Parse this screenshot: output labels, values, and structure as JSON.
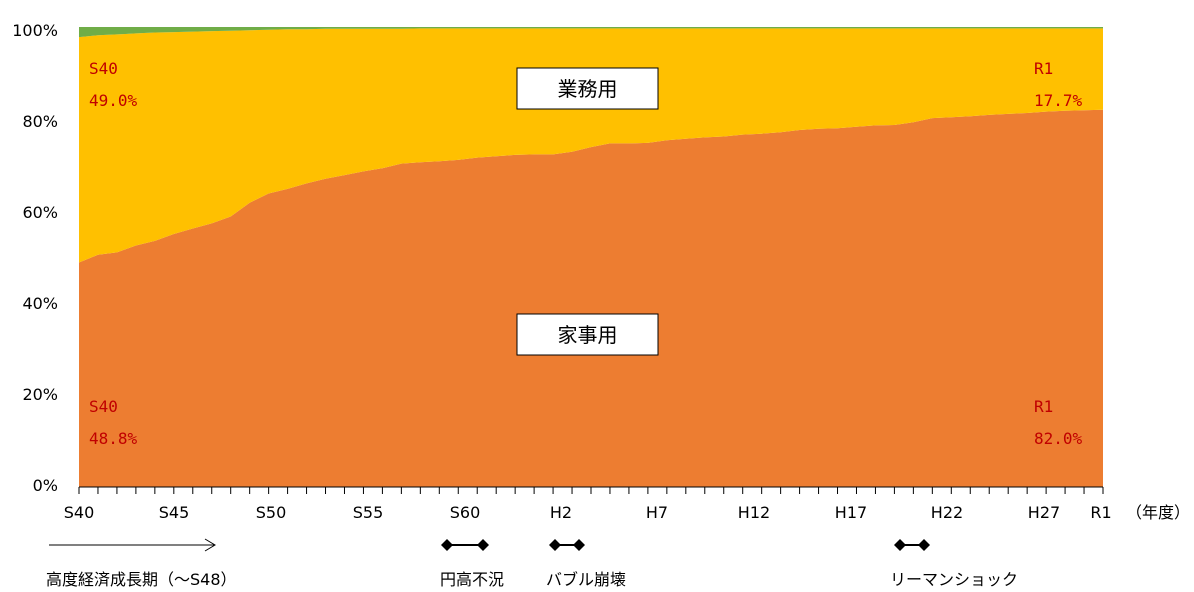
{
  "chart_data": {
    "type": "area",
    "stacked": true,
    "normalized": true,
    "x": [
      "S40",
      "S41",
      "S42",
      "S43",
      "S44",
      "S45",
      "S46",
      "S47",
      "S48",
      "S49",
      "S50",
      "S51",
      "S52",
      "S53",
      "S54",
      "S55",
      "S56",
      "S57",
      "S58",
      "S59",
      "S60",
      "S61",
      "S62",
      "S63",
      "H1",
      "H2",
      "H3",
      "H4",
      "H5",
      "H6",
      "H7",
      "H8",
      "H9",
      "H10",
      "H11",
      "H12",
      "H13",
      "H14",
      "H15",
      "H16",
      "H17",
      "H18",
      "H19",
      "H20",
      "H21",
      "H22",
      "H23",
      "H24",
      "H25",
      "H26",
      "H27",
      "H28",
      "H29",
      "H30",
      "R1"
    ],
    "x_tick_labels": [
      "S40",
      "S45",
      "S50",
      "S55",
      "S60",
      "H2",
      "H7",
      "H12",
      "H17",
      "H22",
      "H27",
      "R1"
    ],
    "x_unit_label": "（年度）",
    "y_tick_labels": [
      "0%",
      "20%",
      "40%",
      "60%",
      "80%",
      "100%"
    ],
    "ylim": [
      0,
      100
    ],
    "series": [
      {
        "color": "#ED7D31",
        "values": [
          48.8,
          50.5,
          51.0,
          52.5,
          53.5,
          55.0,
          56.2,
          57.3,
          58.8,
          61.8,
          63.8,
          64.8,
          66.0,
          67.0,
          67.8,
          68.6,
          69.3,
          70.3,
          70.6,
          70.8,
          71.1,
          71.6,
          71.9,
          72.2,
          72.3,
          72.3,
          72.9,
          73.9,
          74.7,
          74.7,
          74.8,
          75.4,
          75.7,
          76.0,
          76.2,
          76.6,
          76.8,
          77.1,
          77.6,
          77.9,
          78.0,
          78.3,
          78.6,
          78.7,
          79.3,
          80.2,
          80.4,
          80.6,
          80.9,
          81.1,
          81.3,
          81.6,
          81.8,
          81.9,
          82.0
        ]
      },
      {
        "color": "#FFC000",
        "values": [
          49.0,
          47.7,
          47.4,
          46.1,
          45.3,
          43.9,
          42.8,
          41.8,
          40.4,
          37.5,
          35.6,
          34.7,
          33.5,
          32.6,
          31.8,
          31.0,
          30.3,
          29.3,
          29.1,
          28.9,
          28.6,
          28.1,
          27.8,
          27.5,
          27.4,
          27.4,
          26.8,
          25.8,
          25.0,
          25.0,
          24.9,
          24.3,
          24.0,
          23.7,
          23.5,
          23.1,
          22.9,
          22.6,
          22.1,
          21.8,
          21.7,
          21.4,
          21.1,
          21.0,
          20.4,
          19.5,
          19.3,
          19.1,
          18.8,
          18.6,
          18.4,
          18.1,
          17.9,
          17.8,
          17.7
        ]
      },
      {
        "color": "#70AD47",
        "values": [
          2.2,
          1.8,
          1.6,
          1.4,
          1.2,
          1.1,
          1.0,
          0.9,
          0.8,
          0.7,
          0.6,
          0.5,
          0.5,
          0.4,
          0.4,
          0.4,
          0.4,
          0.4,
          0.3,
          0.3,
          0.3,
          0.3,
          0.3,
          0.3,
          0.3,
          0.3,
          0.3,
          0.3,
          0.3,
          0.3,
          0.3,
          0.3,
          0.3,
          0.3,
          0.3,
          0.3,
          0.3,
          0.3,
          0.3,
          0.3,
          0.3,
          0.3,
          0.3,
          0.3,
          0.3,
          0.3,
          0.3,
          0.3,
          0.3,
          0.3,
          0.3,
          0.3,
          0.3,
          0.3,
          0.3
        ]
      }
    ],
    "box_labels": {
      "business": "業務用",
      "household": "家事用"
    },
    "annotations": {
      "business_start_year": "S40",
      "business_start_value": "49.0%",
      "business_end_year": "R1",
      "business_end_value": "17.7%",
      "household_start_year": "S40",
      "household_start_value": "48.8%",
      "household_end_year": "R1",
      "household_end_value": "82.0%"
    },
    "period_markers": {
      "growth": "高度経済成長期（～S48）",
      "yen": "円高不況",
      "bubble": "バブル崩壊",
      "lehman": "リーマンショック"
    }
  }
}
